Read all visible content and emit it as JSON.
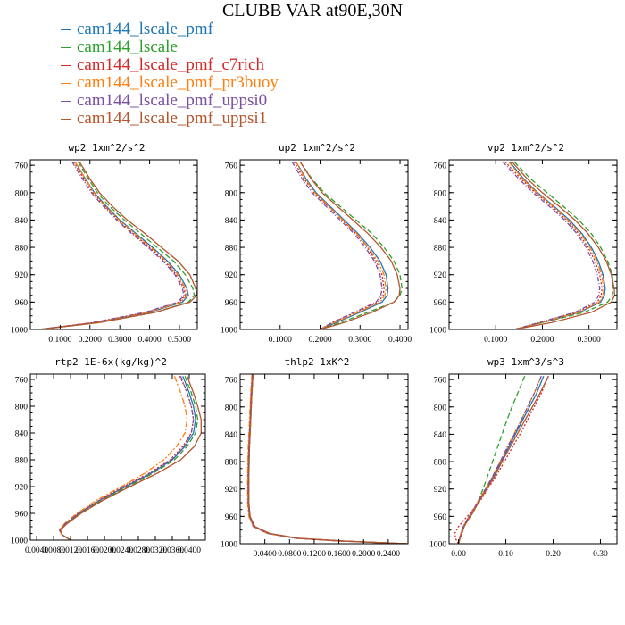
{
  "title": "CLUBB VAR at90E,30N",
  "colors": {
    "cam144_lscale_pmf": "#1f77b4",
    "cam144_lscale": "#2ca02c",
    "cam144_lscale_pmf_c7rich": "#d62728",
    "cam144_lscale_pmf_pr3buoy": "#ff7f0e",
    "cam144_lscale_pmf_uppsi0": "#7b4fa3",
    "cam144_lscale_pmf_uppsi1": "#b5552e"
  },
  "chart_data": [
    {
      "type": "line",
      "title": "wp2  1xm^2/s^2",
      "ylim": [
        1000,
        752
      ],
      "yticks": [
        "760",
        "800",
        "840",
        "880",
        "920",
        "960",
        "1000"
      ],
      "xlim": [
        0,
        0.56
      ],
      "xticks": [
        0.1,
        0.2,
        0.3,
        0.4,
        0.5
      ],
      "xtick_labels": [
        "0.1000",
        "0.2000",
        "0.3000",
        "0.4000",
        "0.5000"
      ],
      "pressure": [
        755,
        780,
        800,
        820,
        840,
        860,
        880,
        900,
        920,
        940,
        950,
        960,
        975,
        990,
        1000
      ],
      "series": [
        {
          "name": "cam144_lscale_pmf",
          "values": [
            0.15,
            0.185,
            0.215,
            0.255,
            0.3,
            0.355,
            0.41,
            0.46,
            0.5,
            0.525,
            0.53,
            0.51,
            0.4,
            0.22,
            0.03
          ]
        },
        {
          "name": "cam144_lscale",
          "values": [
            0.16,
            0.195,
            0.225,
            0.265,
            0.315,
            0.37,
            0.425,
            0.48,
            0.52,
            0.545,
            0.55,
            0.53,
            0.42,
            0.23,
            0.03
          ]
        },
        {
          "name": "cam144_lscale_pmf_c7rich",
          "values": [
            0.145,
            0.18,
            0.21,
            0.25,
            0.295,
            0.345,
            0.4,
            0.45,
            0.49,
            0.515,
            0.52,
            0.5,
            0.39,
            0.21,
            0.03
          ]
        },
        {
          "name": "cam144_lscale_pmf_pr3buoy",
          "values": [
            0.15,
            0.185,
            0.213,
            0.252,
            0.298,
            0.35,
            0.405,
            0.455,
            0.495,
            0.52,
            0.525,
            0.505,
            0.395,
            0.215,
            0.03
          ]
        },
        {
          "name": "cam144_lscale_pmf_uppsi0",
          "values": [
            0.14,
            0.175,
            0.205,
            0.245,
            0.29,
            0.34,
            0.395,
            0.445,
            0.485,
            0.51,
            0.515,
            0.495,
            0.385,
            0.21,
            0.03
          ]
        },
        {
          "name": "cam144_lscale_pmf_uppsi1",
          "values": [
            0.165,
            0.2,
            0.232,
            0.275,
            0.325,
            0.385,
            0.44,
            0.495,
            0.535,
            0.555,
            0.558,
            0.535,
            0.42,
            0.23,
            0.03
          ]
        }
      ]
    },
    {
      "type": "line",
      "title": "up2  1xm^2/s^2",
      "ylim": [
        1000,
        752
      ],
      "yticks": [
        "760",
        "800",
        "840",
        "880",
        "920",
        "960",
        "1000"
      ],
      "xlim": [
        0,
        0.42
      ],
      "xticks": [
        0.1,
        0.2,
        0.3,
        0.4
      ],
      "xtick_labels": [
        "0.1000",
        "0.2000",
        "0.3000",
        "0.4000"
      ],
      "pressure": [
        755,
        780,
        800,
        820,
        840,
        860,
        880,
        900,
        920,
        940,
        950,
        960,
        975,
        990,
        1000
      ],
      "series": [
        {
          "name": "cam144_lscale_pmf",
          "values": [
            0.14,
            0.165,
            0.19,
            0.225,
            0.26,
            0.295,
            0.325,
            0.35,
            0.365,
            0.37,
            0.368,
            0.355,
            0.3,
            0.24,
            0.2
          ]
        },
        {
          "name": "cam144_lscale",
          "values": [
            0.15,
            0.18,
            0.21,
            0.25,
            0.29,
            0.33,
            0.36,
            0.385,
            0.4,
            0.405,
            0.4,
            0.385,
            0.32,
            0.25,
            0.2
          ]
        },
        {
          "name": "cam144_lscale_pmf_c7rich",
          "values": [
            0.135,
            0.16,
            0.185,
            0.22,
            0.255,
            0.29,
            0.318,
            0.34,
            0.355,
            0.36,
            0.358,
            0.345,
            0.29,
            0.23,
            0.2
          ]
        },
        {
          "name": "cam144_lscale_pmf_pr3buoy",
          "values": [
            0.14,
            0.163,
            0.187,
            0.222,
            0.257,
            0.292,
            0.32,
            0.345,
            0.36,
            0.365,
            0.362,
            0.35,
            0.295,
            0.235,
            0.2
          ]
        },
        {
          "name": "cam144_lscale_pmf_uppsi0",
          "values": [
            0.13,
            0.155,
            0.18,
            0.215,
            0.25,
            0.285,
            0.313,
            0.336,
            0.35,
            0.355,
            0.352,
            0.34,
            0.285,
            0.23,
            0.2
          ]
        },
        {
          "name": "cam144_lscale_pmf_uppsi1",
          "values": [
            0.15,
            0.178,
            0.205,
            0.243,
            0.282,
            0.32,
            0.352,
            0.378,
            0.393,
            0.4,
            0.398,
            0.385,
            0.33,
            0.26,
            0.2
          ]
        }
      ]
    },
    {
      "type": "line",
      "title": "vp2  1xm^2/s^2",
      "ylim": [
        1000,
        752
      ],
      "yticks": [
        "760",
        "800",
        "840",
        "880",
        "920",
        "960",
        "1000"
      ],
      "xlim": [
        0,
        0.36
      ],
      "xticks": [
        0.1,
        0.2,
        0.3
      ],
      "xtick_labels": [
        "0.1000",
        "0.2000",
        "0.3000"
      ],
      "pressure": [
        755,
        780,
        800,
        820,
        840,
        860,
        880,
        900,
        920,
        940,
        950,
        960,
        975,
        990,
        1000
      ],
      "series": [
        {
          "name": "cam144_lscale_pmf",
          "values": [
            0.13,
            0.16,
            0.19,
            0.225,
            0.258,
            0.285,
            0.305,
            0.32,
            0.33,
            0.335,
            0.333,
            0.325,
            0.28,
            0.2,
            0.14
          ]
        },
        {
          "name": "cam144_lscale",
          "values": [
            0.14,
            0.175,
            0.21,
            0.245,
            0.278,
            0.305,
            0.325,
            0.34,
            0.35,
            0.352,
            0.35,
            0.34,
            0.29,
            0.2,
            0.14
          ]
        },
        {
          "name": "cam144_lscale_pmf_c7rich",
          "values": [
            0.12,
            0.155,
            0.185,
            0.22,
            0.252,
            0.278,
            0.298,
            0.313,
            0.323,
            0.328,
            0.326,
            0.318,
            0.275,
            0.195,
            0.14
          ]
        },
        {
          "name": "cam144_lscale_pmf_pr3buoy",
          "values": [
            0.128,
            0.158,
            0.188,
            0.223,
            0.255,
            0.282,
            0.302,
            0.317,
            0.327,
            0.332,
            0.33,
            0.322,
            0.278,
            0.197,
            0.14
          ]
        },
        {
          "name": "cam144_lscale_pmf_uppsi0",
          "values": [
            0.115,
            0.15,
            0.18,
            0.215,
            0.248,
            0.274,
            0.294,
            0.308,
            0.318,
            0.323,
            0.321,
            0.313,
            0.27,
            0.192,
            0.14
          ]
        },
        {
          "name": "cam144_lscale_pmf_uppsi1",
          "values": [
            0.135,
            0.168,
            0.2,
            0.236,
            0.27,
            0.298,
            0.32,
            0.337,
            0.348,
            0.354,
            0.355,
            0.348,
            0.305,
            0.22,
            0.14
          ]
        }
      ]
    },
    {
      "type": "line",
      "title": "rtp2  1E-6x(kg/kg)^2",
      "ylim": [
        1000,
        752
      ],
      "yticks": [
        "760",
        "800",
        "840",
        "880",
        "920",
        "960",
        "1000"
      ],
      "xlim": [
        0.0025,
        0.0438
      ],
      "xticks": [
        0.004,
        0.008,
        0.012,
        0.016,
        0.02,
        0.024,
        0.028,
        0.032,
        0.036,
        0.04
      ],
      "xtick_labels": [
        "0.0040",
        "0.0080",
        "0.0120",
        "0.0160",
        "0.0200",
        "0.0240",
        "0.0280",
        "0.0320",
        "0.0360",
        "0.0400"
      ],
      "tick_label_step": 1,
      "pressure": [
        755,
        780,
        800,
        820,
        840,
        860,
        880,
        900,
        920,
        940,
        960,
        975,
        985,
        992,
        1000
      ],
      "series": [
        {
          "name": "cam144_lscale_pmf",
          "values": [
            0.0385,
            0.04,
            0.041,
            0.0415,
            0.041,
            0.039,
            0.036,
            0.031,
            0.025,
            0.019,
            0.014,
            0.011,
            0.0095,
            0.01,
            0.012
          ]
        },
        {
          "name": "cam144_lscale",
          "values": [
            0.039,
            0.0405,
            0.0415,
            0.042,
            0.0415,
            0.0395,
            0.0365,
            0.0315,
            0.0255,
            0.0195,
            0.0142,
            0.011,
            0.0095,
            0.01,
            0.012
          ]
        },
        {
          "name": "cam144_lscale_pmf_c7rich",
          "values": [
            0.0378,
            0.0395,
            0.0405,
            0.041,
            0.0405,
            0.0385,
            0.0355,
            0.0305,
            0.0245,
            0.0188,
            0.0138,
            0.0108,
            0.0094,
            0.01,
            0.012
          ]
        },
        {
          "name": "cam144_lscale_pmf_pr3buoy",
          "values": [
            0.0365,
            0.038,
            0.039,
            0.0395,
            0.039,
            0.037,
            0.034,
            0.0295,
            0.024,
            0.0182,
            0.0135,
            0.0106,
            0.0093,
            0.01,
            0.012
          ]
        },
        {
          "name": "cam144_lscale_pmf_uppsi0",
          "values": [
            0.038,
            0.0395,
            0.0405,
            0.041,
            0.0405,
            0.0388,
            0.0358,
            0.0308,
            0.0248,
            0.019,
            0.0139,
            0.0108,
            0.0094,
            0.01,
            0.012
          ]
        },
        {
          "name": "cam144_lscale_pmf_uppsi1",
          "values": [
            0.0395,
            0.041,
            0.042,
            0.0428,
            0.0428,
            0.0412,
            0.038,
            0.0325,
            0.026,
            0.0198,
            0.0145,
            0.0112,
            0.0096,
            0.01,
            0.012
          ]
        }
      ]
    },
    {
      "type": "line",
      "title": "thlp2  1xK^2",
      "ylim": [
        1000,
        752
      ],
      "yticks": [
        "760",
        "800",
        "840",
        "880",
        "920",
        "960",
        "1000"
      ],
      "xlim": [
        0,
        0.272
      ],
      "xticks": [
        0.04,
        0.08,
        0.12,
        0.16,
        0.2,
        0.24
      ],
      "xtick_labels": [
        "0.0400",
        "0.0800",
        "0.1200",
        "0.1600",
        "0.2000",
        "0.2400"
      ],
      "tick_label_step": 1,
      "pressure": [
        752,
        780,
        820,
        860,
        900,
        940,
        960,
        975,
        985,
        992,
        996,
        1000
      ],
      "series": [
        {
          "name": "cam144_lscale_pmf",
          "values": [
            0.02,
            0.018,
            0.016,
            0.014,
            0.013,
            0.013,
            0.015,
            0.022,
            0.045,
            0.09,
            0.16,
            0.27
          ]
        },
        {
          "name": "cam144_lscale",
          "values": [
            0.021,
            0.019,
            0.017,
            0.015,
            0.014,
            0.014,
            0.016,
            0.023,
            0.046,
            0.092,
            0.162,
            0.27
          ]
        },
        {
          "name": "cam144_lscale_pmf_c7rich",
          "values": [
            0.02,
            0.018,
            0.016,
            0.014,
            0.013,
            0.013,
            0.015,
            0.023,
            0.047,
            0.093,
            0.163,
            0.27
          ]
        },
        {
          "name": "cam144_lscale_pmf_pr3buoy",
          "values": [
            0.019,
            0.017,
            0.015,
            0.013,
            0.012,
            0.012,
            0.014,
            0.021,
            0.044,
            0.089,
            0.158,
            0.27
          ]
        },
        {
          "name": "cam144_lscale_pmf_uppsi0",
          "values": [
            0.02,
            0.018,
            0.016,
            0.014,
            0.013,
            0.013,
            0.015,
            0.022,
            0.045,
            0.09,
            0.16,
            0.27
          ]
        },
        {
          "name": "cam144_lscale_pmf_uppsi1",
          "values": [
            0.021,
            0.019,
            0.017,
            0.015,
            0.014,
            0.014,
            0.016,
            0.024,
            0.048,
            0.095,
            0.165,
            0.27
          ]
        }
      ]
    },
    {
      "type": "line",
      "title": "wp3  1xm^3/s^3",
      "ylim": [
        1000,
        752
      ],
      "yticks": [
        "760",
        "800",
        "840",
        "880",
        "920",
        "960",
        "1000"
      ],
      "xlim": [
        -0.02,
        0.335
      ],
      "xticks": [
        0.0,
        0.1,
        0.2,
        0.3
      ],
      "xtick_labels": [
        "0.00",
        "0.10",
        "0.20",
        "0.30"
      ],
      "pressure": [
        755,
        780,
        800,
        820,
        840,
        860,
        880,
        900,
        920,
        940,
        955,
        965,
        975,
        985,
        993,
        1000
      ],
      "series": [
        {
          "name": "cam144_lscale_pmf",
          "values": [
            0.18,
            0.165,
            0.15,
            0.135,
            0.12,
            0.105,
            0.09,
            0.075,
            0.058,
            0.04,
            0.027,
            0.018,
            0.01,
            0.005,
            0.002,
            0.0
          ]
        },
        {
          "name": "cam144_lscale",
          "values": [
            0.14,
            0.125,
            0.113,
            0.102,
            0.092,
            0.082,
            0.072,
            0.062,
            0.052,
            0.04,
            0.03,
            0.02,
            0.012,
            0.006,
            0.002,
            0.0
          ]
        },
        {
          "name": "cam144_lscale_pmf_c7rich",
          "values": [
            0.19,
            0.175,
            0.16,
            0.145,
            0.13,
            0.113,
            0.097,
            0.08,
            0.062,
            0.043,
            0.025,
            0.012,
            0.0,
            -0.008,
            -0.006,
            0.0
          ]
        },
        {
          "name": "cam144_lscale_pmf_pr3buoy",
          "values": [
            0.175,
            0.16,
            0.146,
            0.132,
            0.117,
            0.102,
            0.088,
            0.073,
            0.057,
            0.04,
            0.027,
            0.018,
            0.01,
            0.005,
            0.002,
            0.0
          ]
        },
        {
          "name": "cam144_lscale_pmf_uppsi0",
          "values": [
            0.175,
            0.16,
            0.146,
            0.132,
            0.118,
            0.103,
            0.088,
            0.073,
            0.057,
            0.04,
            0.027,
            0.018,
            0.01,
            0.005,
            0.002,
            0.0
          ]
        },
        {
          "name": "cam144_lscale_pmf_uppsi1",
          "values": [
            0.19,
            0.172,
            0.156,
            0.14,
            0.124,
            0.108,
            0.092,
            0.077,
            0.06,
            0.042,
            0.03,
            0.02,
            0.012,
            0.007,
            0.003,
            0.0
          ]
        }
      ]
    }
  ]
}
